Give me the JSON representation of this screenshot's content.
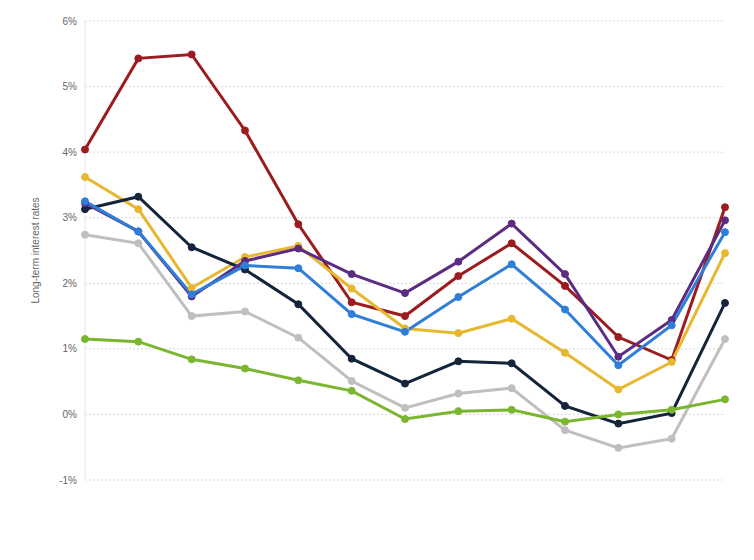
{
  "chart_data": {
    "type": "line",
    "y_label": "Long-term interest rates",
    "categories": [
      null,
      null,
      null,
      null,
      null,
      null,
      null,
      null,
      null,
      null,
      null,
      null,
      null
    ],
    "series": [
      {
        "color": "#9b1b1e",
        "values": [
          4.04,
          5.43,
          5.49,
          4.33,
          2.9,
          1.71,
          1.5,
          2.11,
          2.61,
          1.96,
          1.18,
          0.83,
          3.16
        ]
      },
      {
        "color": "#e8b730",
        "values": [
          3.62,
          3.13,
          1.93,
          2.4,
          2.57,
          1.92,
          1.31,
          1.24,
          1.46,
          0.94,
          0.38,
          0.8,
          2.46
        ]
      },
      {
        "color": "#14243a",
        "values": [
          3.13,
          3.32,
          2.55,
          2.21,
          1.68,
          0.85,
          0.47,
          0.81,
          0.78,
          0.13,
          -0.14,
          0.02,
          1.7
        ]
      },
      {
        "color": "#5b2c82",
        "values": [
          3.22,
          2.79,
          1.8,
          2.34,
          2.53,
          2.14,
          1.85,
          2.33,
          2.91,
          2.14,
          0.88,
          1.44,
          2.96
        ]
      },
      {
        "color": "#2f7ed8",
        "values": [
          3.25,
          2.79,
          1.83,
          2.27,
          2.23,
          1.53,
          1.26,
          1.79,
          2.29,
          1.6,
          0.75,
          1.36,
          2.78
        ]
      },
      {
        "color": "#bfbfbf",
        "values": [
          2.74,
          2.61,
          1.5,
          1.57,
          1.17,
          0.51,
          0.1,
          0.32,
          0.4,
          -0.24,
          -0.51,
          -0.37,
          1.15
        ]
      },
      {
        "color": "#7ab62f",
        "values": [
          1.15,
          1.11,
          0.84,
          0.7,
          0.52,
          0.36,
          -0.07,
          0.05,
          0.07,
          -0.11,
          0.0,
          0.07,
          0.23
        ]
      }
    ],
    "ylim": [
      -1,
      6
    ],
    "yticks": [
      {
        "value": -1,
        "label": "-1%"
      },
      {
        "value": 0,
        "label": "0%"
      },
      {
        "value": 1,
        "label": "1%"
      },
      {
        "value": 2,
        "label": "2%"
      },
      {
        "value": 3,
        "label": "3%"
      },
      {
        "value": 4,
        "label": "4%"
      },
      {
        "value": 5,
        "label": "5%"
      },
      {
        "value": 6,
        "label": "6%"
      }
    ],
    "grid": true,
    "tick_labels": "y",
    "marker": "circle",
    "line_style": "solid"
  }
}
